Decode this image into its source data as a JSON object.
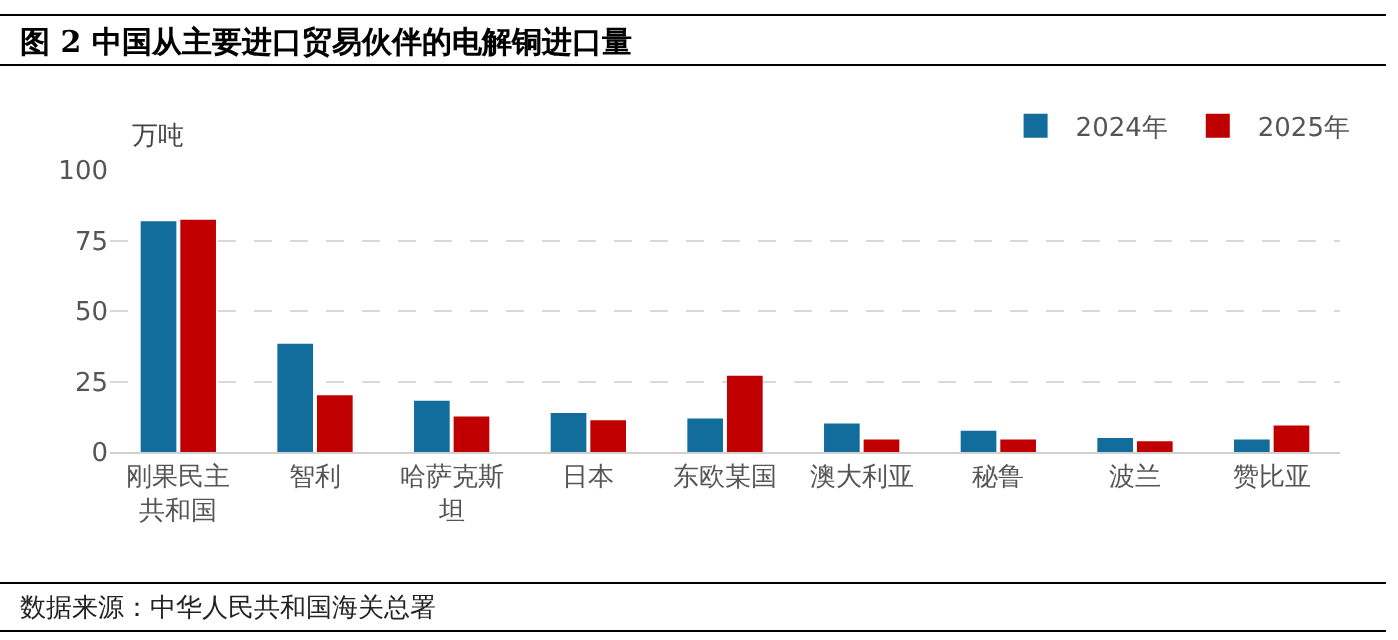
{
  "chart_data": {
    "type": "bar",
    "title": "图 2 中国从主要进口贸易伙伴的电解铜进口量",
    "ylabel": "万吨",
    "categories": [
      "刚果民主共和国",
      "智利",
      "哈萨克斯坦",
      "日本",
      "东欧某国",
      "澳大利亚",
      "秘鲁",
      "波兰",
      "赞比亚"
    ],
    "series": [
      {
        "name": "2024年",
        "color": "#126d9c",
        "values": [
          81.8,
          38.4,
          18.2,
          13.8,
          11.9,
          10.1,
          7.5,
          5.0,
          4.4
        ]
      },
      {
        "name": "2025年",
        "color": "#c00000",
        "values": [
          82.4,
          20.1,
          12.6,
          11.3,
          27.0,
          4.4,
          4.4,
          3.8,
          9.4
        ]
      }
    ],
    "ylim": [
      0,
      100
    ],
    "yticks": [
      0,
      25,
      50,
      75,
      100
    ],
    "grid": "y",
    "legend": "top right",
    "annotations": [
      "数据来源：中华人民共和国海关总署"
    ]
  }
}
